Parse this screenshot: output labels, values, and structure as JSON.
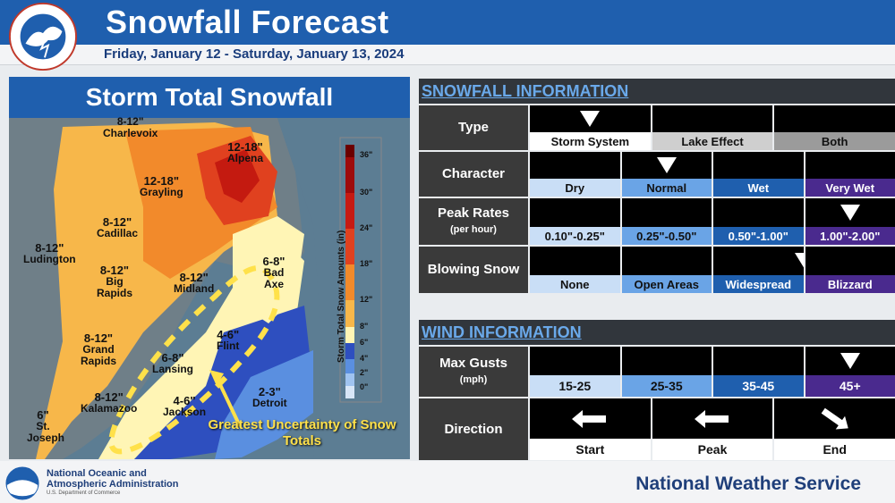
{
  "header": {
    "title": "Snowfall Forecast",
    "subtitle": "Friday, January 12 - Saturday, January 13, 2024"
  },
  "map": {
    "title": "Storm Total Snowfall",
    "labels": [
      {
        "amount": "8-12\"",
        "place": "Charlevoix"
      },
      {
        "amount": "12-18\"",
        "place": "Alpena"
      },
      {
        "amount": "12-18\"",
        "place": "Grayling"
      },
      {
        "amount": "8-12\"",
        "place": "Cadillac"
      },
      {
        "amount": "8-12\"",
        "place": "Ludington"
      },
      {
        "amount": "8-12\"",
        "place": "Big Rapids"
      },
      {
        "amount": "8-12\"",
        "place": "Midland"
      },
      {
        "amount": "6-8\"",
        "place": "Bad Axe"
      },
      {
        "amount": "8-12\"",
        "place": "Grand Rapids"
      },
      {
        "amount": "6-8\"",
        "place": "Lansing"
      },
      {
        "amount": "4-6\"",
        "place": "Flint"
      },
      {
        "amount": "8-12\"",
        "place": "Kalamazoo"
      },
      {
        "amount": "4-6\"",
        "place": "Jackson"
      },
      {
        "amount": "2-3\"",
        "place": "Detroit"
      },
      {
        "amount": "6\"",
        "place": "St. Joseph"
      }
    ],
    "uncertainty_note": "Greatest Uncertainty of Snow Totals",
    "scale_title": "Storm Total Snow Amounts (in)",
    "scale_ticks": [
      "36\"",
      "30\"",
      "24\"",
      "18\"",
      "12\"",
      "8\"",
      "6\"",
      "4\"",
      "2\"",
      "0\""
    ]
  },
  "snowfall_info": {
    "heading": "SNOWFALL INFORMATION",
    "rows": [
      {
        "label": "Type",
        "sublabel": "",
        "options": [
          "Storm System",
          "Lake Effect",
          "Both"
        ],
        "selected": 0
      },
      {
        "label": "Character",
        "sublabel": "",
        "options": [
          "Dry",
          "Normal",
          "Wet",
          "Very Wet"
        ],
        "selected": 1
      },
      {
        "label": "Peak Rates",
        "sublabel": "(per hour)",
        "options": [
          "0.10\"-0.25\"",
          "0.25\"-0.50\"",
          "0.50\"-1.00\"",
          "1.00\"-2.00\""
        ],
        "selected": 3
      },
      {
        "label": "Blowing Snow",
        "sublabel": "",
        "options": [
          "None",
          "Open Areas",
          "Widespread",
          "Blizzard"
        ],
        "selected": 2
      }
    ]
  },
  "wind_info": {
    "heading": "WIND INFORMATION",
    "gusts": {
      "label": "Max Gusts",
      "sublabel": "(mph)",
      "options": [
        "15-25",
        "25-35",
        "35-45",
        "45+"
      ],
      "selected": 3
    },
    "direction": {
      "label": "Direction",
      "phases": [
        "Start",
        "Peak",
        "End"
      ],
      "arrows": [
        "arrow-west-icon",
        "arrow-west-icon",
        "arrow-southeast-icon"
      ]
    }
  },
  "footer": {
    "noaa_name_line1": "National Oceanic and",
    "noaa_name_line2": "Atmospheric Administration",
    "noaa_sub": "U.S. Department of Commerce",
    "nws_name": "National Weather Service"
  },
  "colors": {
    "brand_blue": "#1f5fae",
    "heading_blue": "#6aa9ea",
    "purple": "#4a2a8e",
    "uncertainty_yellow": "#ffe14a"
  }
}
